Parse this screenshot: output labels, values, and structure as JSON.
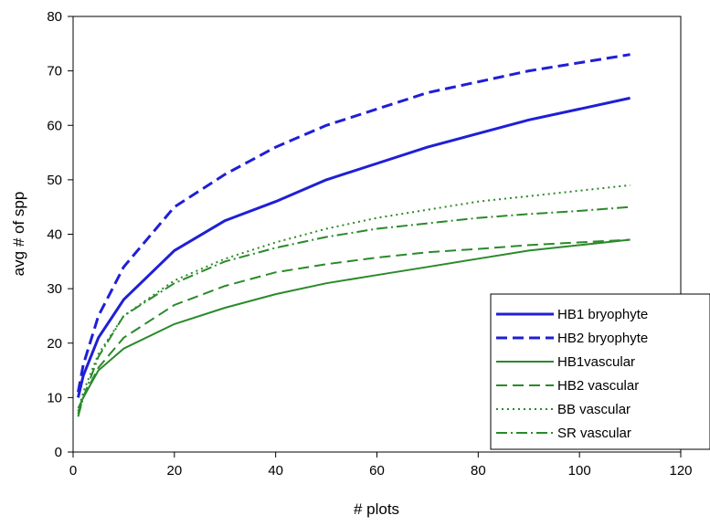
{
  "chart_data": {
    "type": "line",
    "xlabel": "# plots",
    "ylabel": "avg # of spp",
    "xlim": [
      0,
      120
    ],
    "ylim": [
      0,
      80
    ],
    "xticks": [
      0,
      20,
      40,
      60,
      80,
      100,
      120
    ],
    "yticks": [
      0,
      10,
      20,
      30,
      40,
      50,
      60,
      70,
      80
    ],
    "grid": false,
    "legend_position": "bottom-right",
    "x": [
      1,
      2,
      5,
      10,
      20,
      30,
      40,
      50,
      60,
      70,
      80,
      90,
      100,
      110
    ],
    "series": [
      {
        "name": "HB1 bryophyte",
        "color": "#1f1fd6",
        "dash": "solid",
        "values": [
          10,
          14,
          21,
          28,
          37,
          42.5,
          46,
          50,
          53,
          56,
          58.5,
          61,
          63,
          65
        ]
      },
      {
        "name": "HB2 bryophyte",
        "color": "#1f1fd6",
        "dash": "dashed",
        "values": [
          11,
          16,
          25,
          34,
          45,
          51,
          56,
          60,
          63,
          66,
          68,
          70,
          71.5,
          73
        ]
      },
      {
        "name": "HB1vascular",
        "color": "#2a8a2a",
        "dash": "solid",
        "values": [
          8,
          10,
          15,
          19,
          23.5,
          26.5,
          29,
          31,
          32.5,
          34,
          35.5,
          37,
          38,
          39
        ]
      },
      {
        "name": "HB2 vascular",
        "color": "#2a8a2a",
        "dash": "dashed",
        "values": [
          7,
          10,
          15.5,
          21,
          27,
          30.5,
          33,
          34.5,
          35.7,
          36.7,
          37.3,
          38,
          38.5,
          39
        ]
      },
      {
        "name": "BB vascular",
        "color": "#2a8a2a",
        "dash": "dotted",
        "values": [
          7.5,
          11,
          18,
          25,
          31.5,
          35.5,
          38.5,
          41,
          43,
          44.5,
          46,
          47,
          48,
          49
        ]
      },
      {
        "name": "SR vascular",
        "color": "#2a8a2a",
        "dash": "dashdot",
        "values": [
          6.5,
          10,
          17.5,
          25,
          31,
          35,
          37.5,
          39.5,
          41,
          42,
          43,
          43.7,
          44.3,
          45
        ]
      }
    ]
  }
}
